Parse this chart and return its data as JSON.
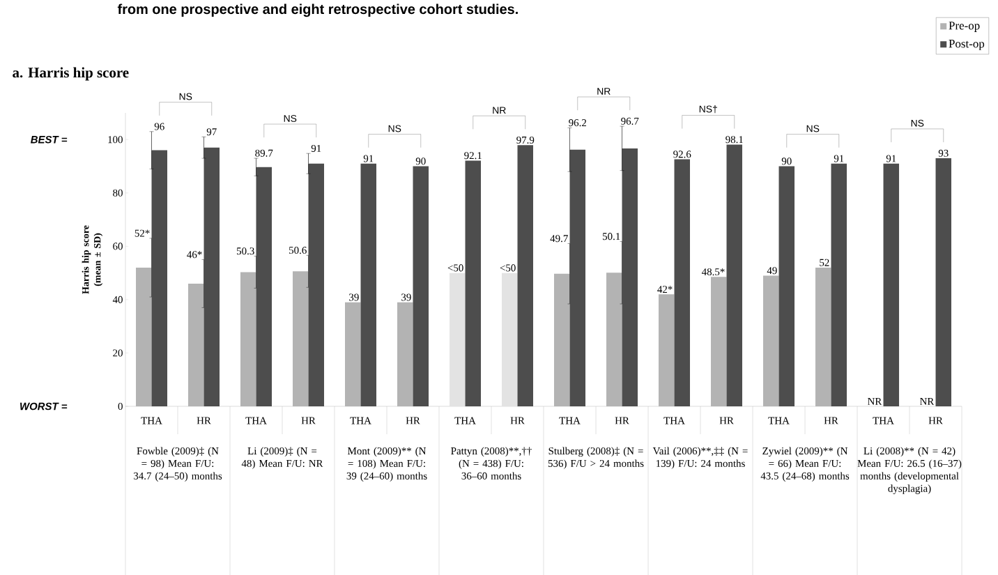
{
  "chart_data": {
    "type": "bar",
    "title": "from one prospective and eight retrospective cohort studies.",
    "subtitle": "a.  Harris hip score",
    "ylabel": "Harris hip score (mean ± SD)",
    "categories": [
      "THA",
      "HR",
      "THA",
      "HR",
      "THA",
      "HR",
      "THA",
      "HR",
      "THA",
      "HR",
      "THA",
      "HR",
      "THA",
      "HR",
      "THA",
      "HR"
    ],
    "series": [
      {
        "name": "Pre-op",
        "color": "#b3b3b3",
        "colors": [
          "#b3b3b3",
          "#b3b3b3",
          "#b3b3b3",
          "#b3b3b3",
          "#b3b3b3",
          "#b3b3b3",
          "#e3e3e3",
          "#e3e3e3",
          "#b3b3b3",
          "#b3b3b3",
          "#b3b3b3",
          "#b3b3b3",
          "#b3b3b3",
          "#b3b3b3",
          "#b3b3b3",
          "#b3b3b3"
        ],
        "values": [
          52,
          46,
          50.3,
          50.6,
          39,
          39,
          50,
          50,
          49.7,
          50.1,
          42,
          48.5,
          49,
          52,
          null,
          null
        ],
        "errors": [
          11,
          9,
          6,
          6,
          null,
          null,
          null,
          null,
          11.3,
          11.7,
          null,
          null,
          null,
          null,
          null,
          null
        ],
        "value_labels": [
          "52*",
          "46*",
          "50.3",
          "50.6",
          "39",
          "39",
          "<50",
          "<50",
          "49.7",
          "50.1",
          "42*",
          "48.5*",
          "49",
          "52",
          "NR",
          "NR"
        ]
      },
      {
        "name": "Post-op",
        "color": "#4d4d4d",
        "values": [
          96,
          97,
          89.7,
          91,
          91,
          90,
          92.1,
          97.9,
          96.2,
          96.7,
          92.6,
          98.1,
          90,
          91,
          91,
          93
        ],
        "errors": [
          7,
          4,
          3.3,
          3.8,
          null,
          null,
          null,
          null,
          8.2,
          8.3,
          null,
          null,
          null,
          null,
          null,
          null
        ],
        "value_labels": [
          "96",
          "97",
          "89.7",
          "91",
          "91",
          "90",
          "92.1",
          "97.9",
          "96.2",
          "96.7",
          "92.6",
          "98.1",
          "90",
          "91",
          "91",
          "93"
        ]
      }
    ],
    "ylim": [
      0,
      110
    ],
    "yticks": [
      0,
      20,
      40,
      60,
      80,
      100
    ],
    "legend": "top right",
    "annotations": [
      "NS",
      "NS",
      "NS",
      "NR",
      "NR",
      "NS†",
      "NS",
      "NS",
      "BEST =",
      "WORST =",
      "Fowble (2009)‡ (N = 98) Mean F/U: 34.7 (24–50) months",
      "Li (2009)‡ (N = 48) Mean F/U: NR",
      "Mont (2009)** (N = 108) Mean F/U: 39 (24–60) months",
      "Pattyn (2008)**,†† (N = 438) F/U: 36–60 months",
      "Stulberg (2008)‡ (N = 536) F/U > 24 months",
      "Vail (2006)**,‡‡ (N = 139) F/U: 24 months",
      "Zywiel (2009)** (N = 66) Mean F/U: 43.5 (24–68) months",
      "Li (2008)** (N = 42) Mean F/U: 26.5 (16–37) months (developmental dysplagia)"
    ]
  }
}
